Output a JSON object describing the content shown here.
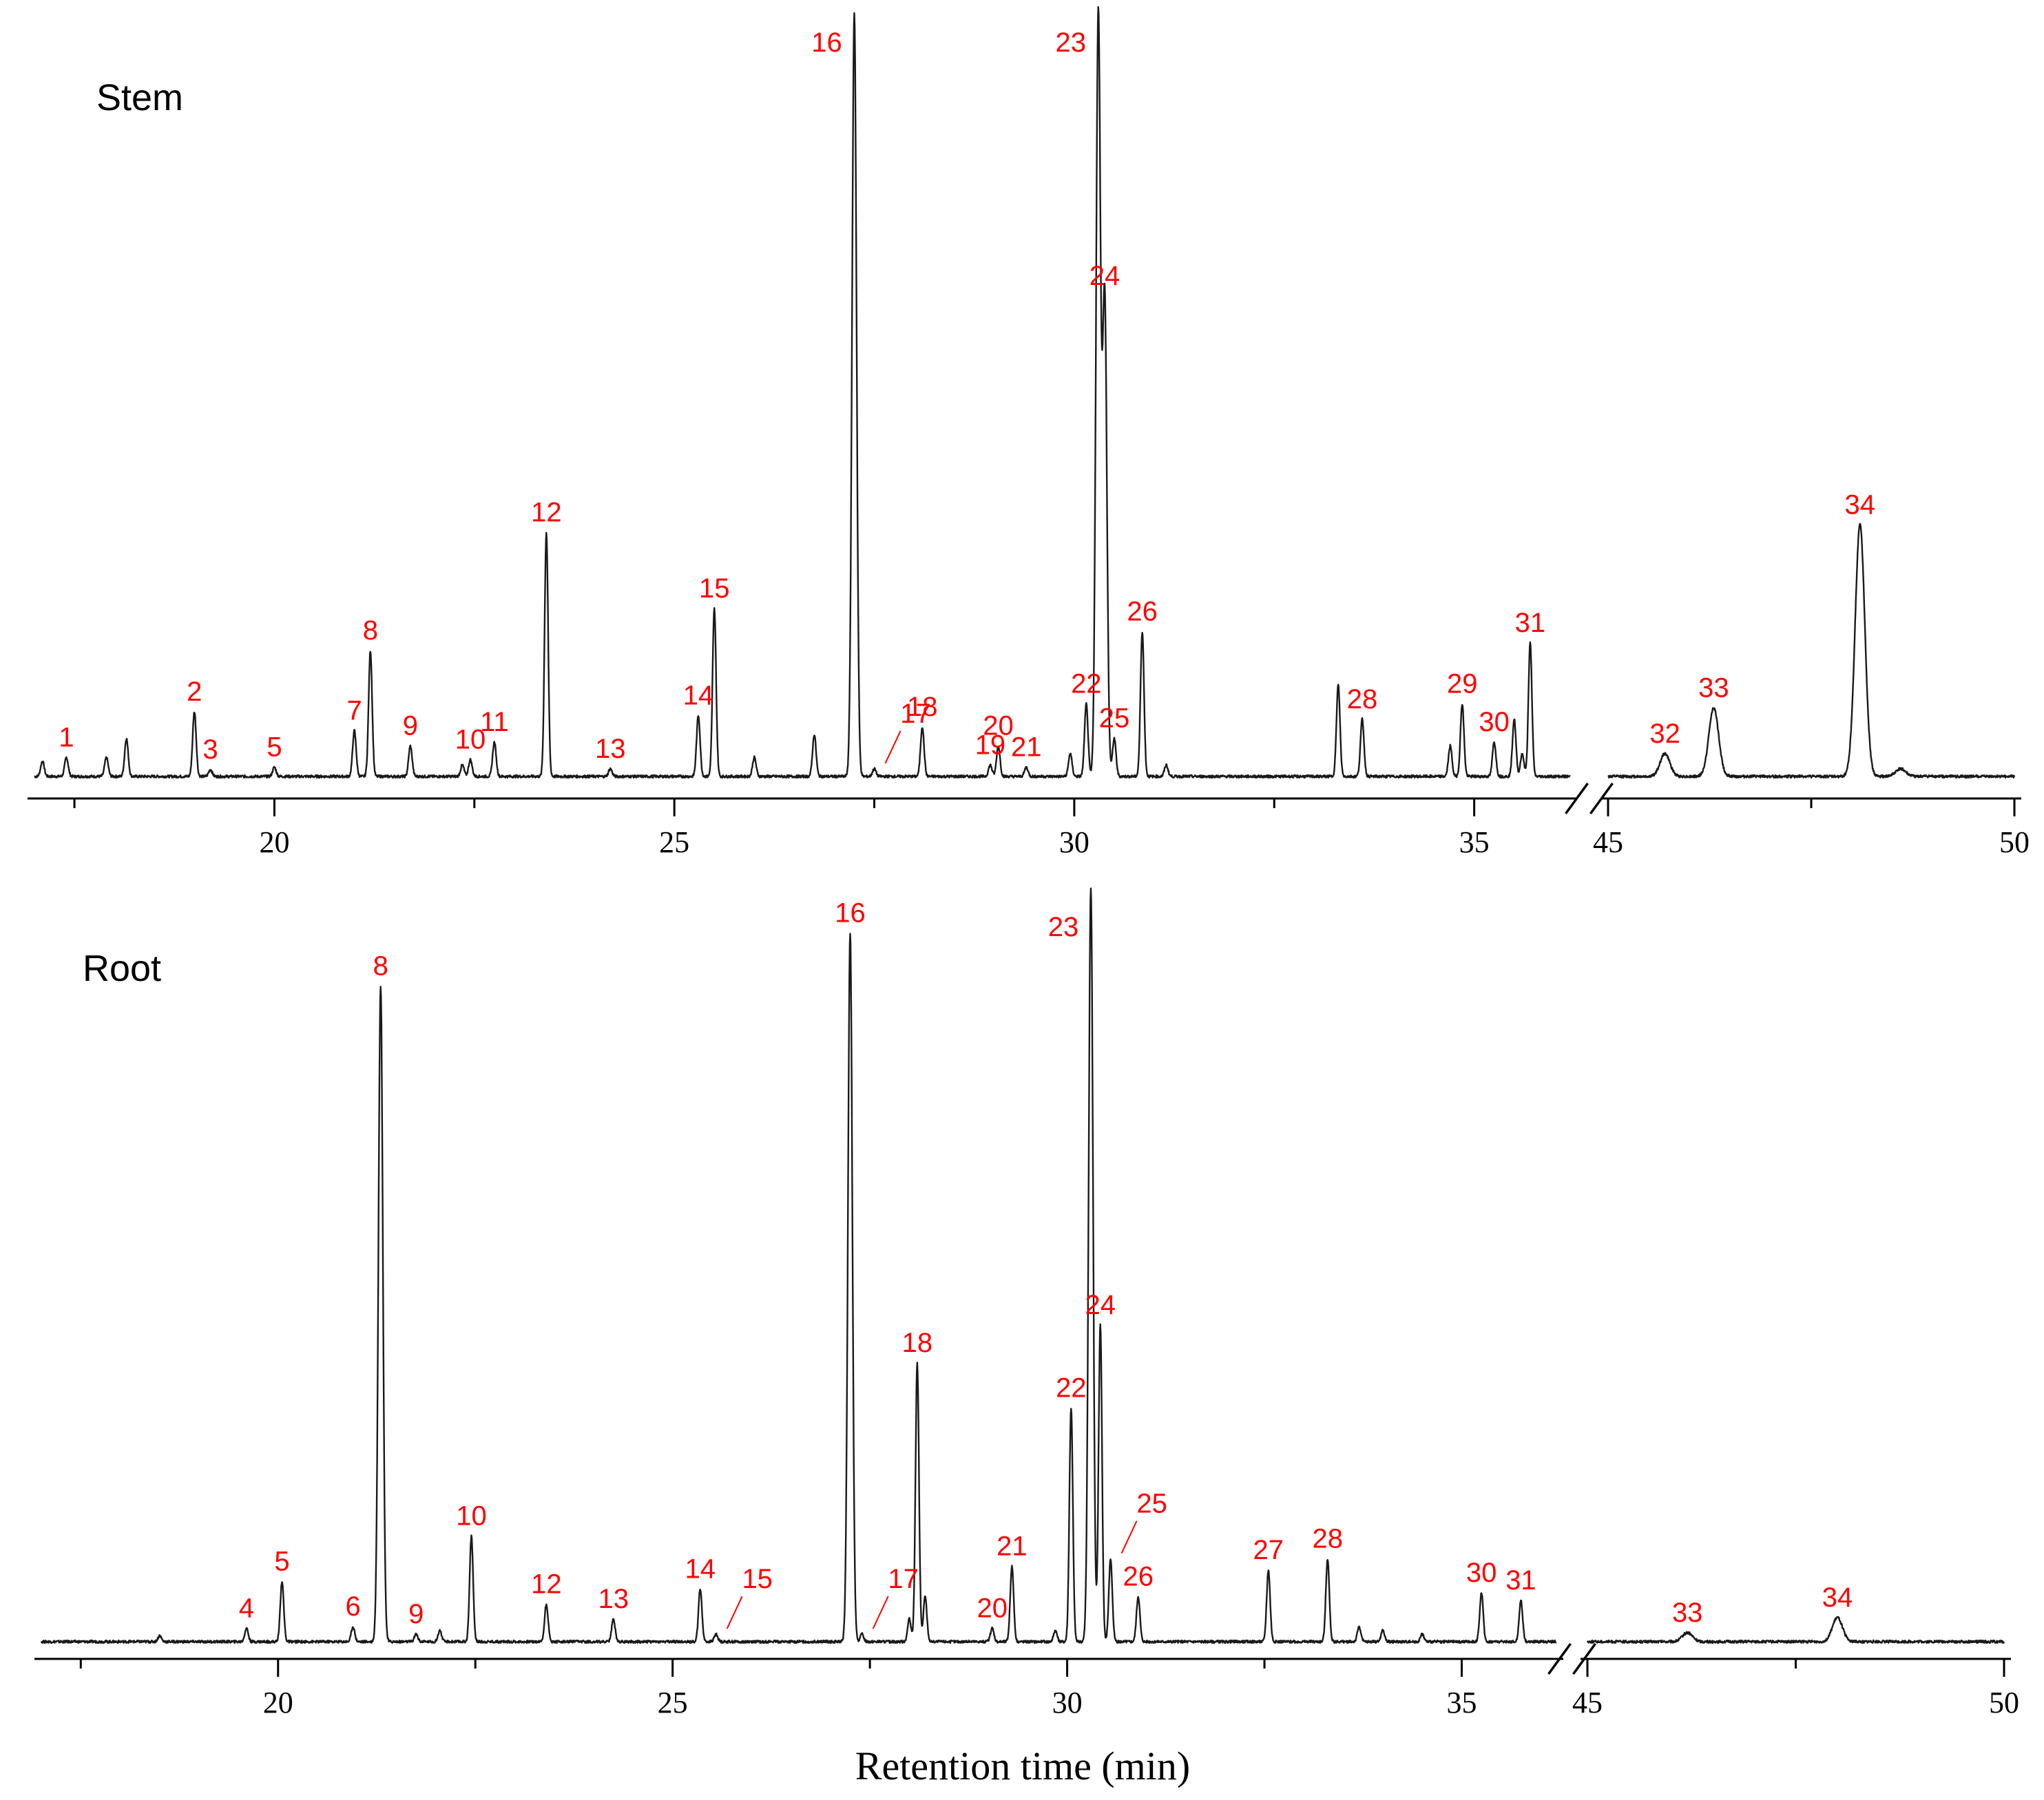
{
  "xlabel": "Retention time (min)",
  "chart_data": [
    {
      "type": "line",
      "title": "Stem",
      "x_segments": [
        [
          17,
          36.2
        ],
        [
          45,
          50
        ]
      ],
      "major_ticks": [
        20,
        25,
        30,
        35,
        45,
        50
      ],
      "minor_ticks": [
        17.5,
        22.5,
        27.5,
        32.5,
        47.5
      ],
      "tick_labels": [
        "20",
        "25",
        "30",
        "35",
        "45",
        "50"
      ],
      "ylim": [
        0,
        100
      ],
      "peaks": [
        {
          "label": "1",
          "x": 17.4,
          "y": 2.5
        },
        {
          "label": "2",
          "x": 19.0,
          "y": 8.5
        },
        {
          "label": "3",
          "x": 19.2,
          "y": 0.9
        },
        {
          "label": "5",
          "x": 20.0,
          "y": 1.2
        },
        {
          "label": "7",
          "x": 21.0,
          "y": 6.0
        },
        {
          "label": "8",
          "x": 21.2,
          "y": 16.5
        },
        {
          "label": "9",
          "x": 21.7,
          "y": 4.0
        },
        {
          "label": "10",
          "x": 22.45,
          "y": 2.2
        },
        {
          "label": "11",
          "x": 22.75,
          "y": 4.5
        },
        {
          "label": "12",
          "x": 23.4,
          "y": 32.0
        },
        {
          "label": "13",
          "x": 24.2,
          "y": 1.0
        },
        {
          "label": "14",
          "x": 25.3,
          "y": 8.0
        },
        {
          "label": "15",
          "x": 25.5,
          "y": 22.0
        },
        {
          "label": "16",
          "x": 27.25,
          "y": 100
        },
        {
          "label": "17",
          "x": 27.5,
          "y": 1.0
        },
        {
          "label": "18",
          "x": 28.1,
          "y": 6.5
        },
        {
          "label": "19",
          "x": 28.95,
          "y": 1.5
        },
        {
          "label": "20",
          "x": 29.05,
          "y": 4.0
        },
        {
          "label": "21",
          "x": 29.4,
          "y": 1.2
        },
        {
          "label": "22",
          "x": 30.15,
          "y": 9.5
        },
        {
          "label": "23",
          "x": 30.3,
          "y": 100
        },
        {
          "label": "24",
          "x": 30.38,
          "y": 63.0
        },
        {
          "label": "25",
          "x": 30.5,
          "y": 5.0
        },
        {
          "label": "26",
          "x": 30.85,
          "y": 19.0
        },
        {
          "label": "28",
          "x": 33.6,
          "y": 7.5
        },
        {
          "label": "29",
          "x": 34.85,
          "y": 9.5
        },
        {
          "label": "30",
          "x": 35.25,
          "y": 4.5
        },
        {
          "label": "31",
          "x": 35.7,
          "y": 17.5
        },
        {
          "label": "32",
          "x": 45.7,
          "y": 3.0
        },
        {
          "label": "33",
          "x": 46.3,
          "y": 9.0
        },
        {
          "label": "34",
          "x": 48.1,
          "y": 33.0
        }
      ],
      "unlabeled_peaks": [
        {
          "x": 17.1,
          "y": 2.0
        },
        {
          "x": 17.9,
          "y": 2.5
        },
        {
          "x": 18.15,
          "y": 5.0
        },
        {
          "x": 22.35,
          "y": 1.5
        },
        {
          "x": 26.0,
          "y": 2.5
        },
        {
          "x": 26.75,
          "y": 5.5
        },
        {
          "x": 29.95,
          "y": 3.0
        },
        {
          "x": 31.15,
          "y": 1.5
        },
        {
          "x": 33.3,
          "y": 12.0
        },
        {
          "x": 34.7,
          "y": 4.0
        },
        {
          "x": 35.5,
          "y": 7.5
        },
        {
          "x": 35.6,
          "y": 3.0
        },
        {
          "x": 48.6,
          "y": 1.0
        }
      ]
    },
    {
      "type": "line",
      "title": "Root",
      "x_segments": [
        [
          17,
          36.2
        ],
        [
          45,
          50
        ]
      ],
      "major_ticks": [
        20,
        25,
        30,
        35,
        45,
        50
      ],
      "minor_ticks": [
        17.5,
        22.5,
        27.5,
        32.5,
        47.5
      ],
      "tick_labels": [
        "20",
        "25",
        "30",
        "35",
        "45",
        "50"
      ],
      "ylim": [
        0,
        100
      ],
      "peaks": [
        {
          "label": "4",
          "x": 19.6,
          "y": 1.8
        },
        {
          "label": "5",
          "x": 20.05,
          "y": 8.0
        },
        {
          "label": "6",
          "x": 20.95,
          "y": 2.0
        },
        {
          "label": "8",
          "x": 21.3,
          "y": 87.0
        },
        {
          "label": "9",
          "x": 21.75,
          "y": 1.0
        },
        {
          "label": "10",
          "x": 22.45,
          "y": 14.0
        },
        {
          "label": "12",
          "x": 23.4,
          "y": 5.0
        },
        {
          "label": "13",
          "x": 24.25,
          "y": 3.0
        },
        {
          "label": "14",
          "x": 25.35,
          "y": 7.0
        },
        {
          "label": "15",
          "x": 25.55,
          "y": 1.0
        },
        {
          "label": "16",
          "x": 27.25,
          "y": 94.0
        },
        {
          "label": "17",
          "x": 27.4,
          "y": 1.0
        },
        {
          "label": "18",
          "x": 28.1,
          "y": 37.0
        },
        {
          "label": "20",
          "x": 29.05,
          "y": 1.8
        },
        {
          "label": "21",
          "x": 29.3,
          "y": 10.0
        },
        {
          "label": "22",
          "x": 30.05,
          "y": 31.0
        },
        {
          "label": "23",
          "x": 30.3,
          "y": 100
        },
        {
          "label": "24",
          "x": 30.42,
          "y": 42.0
        },
        {
          "label": "25",
          "x": 30.55,
          "y": 11.0
        },
        {
          "label": "26",
          "x": 30.9,
          "y": 6.0
        },
        {
          "label": "27",
          "x": 32.55,
          "y": 9.5
        },
        {
          "label": "28",
          "x": 33.3,
          "y": 11.0
        },
        {
          "label": "30",
          "x": 35.25,
          "y": 6.5
        },
        {
          "label": "31",
          "x": 35.75,
          "y": 5.5
        },
        {
          "label": "33",
          "x": 46.2,
          "y": 1.2
        },
        {
          "label": "34",
          "x": 48.0,
          "y": 3.2
        }
      ],
      "unlabeled_peaks": [
        {
          "x": 18.5,
          "y": 0.8
        },
        {
          "x": 22.05,
          "y": 1.5
        },
        {
          "x": 28.0,
          "y": 3.0
        },
        {
          "x": 28.2,
          "y": 6.0
        },
        {
          "x": 29.85,
          "y": 1.5
        },
        {
          "x": 33.7,
          "y": 2.0
        },
        {
          "x": 34.0,
          "y": 1.5
        },
        {
          "x": 34.5,
          "y": 1.0
        }
      ]
    }
  ]
}
